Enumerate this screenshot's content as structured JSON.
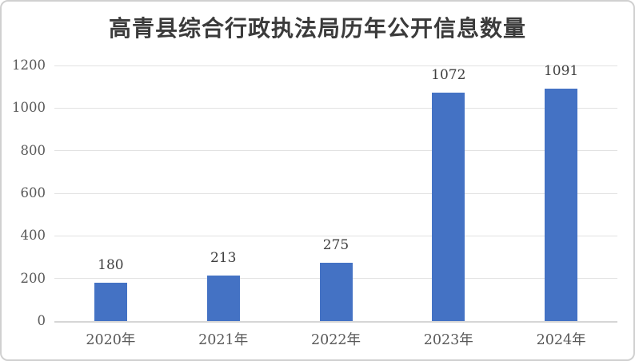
{
  "chart_data": {
    "type": "bar",
    "title": "高青县综合行政执法局历年公开信息数量",
    "categories": [
      "2020年",
      "2021年",
      "2022年",
      "2023年",
      "2024年"
    ],
    "values": [
      180,
      213,
      275,
      1072,
      1091
    ],
    "data_labels": [
      "180",
      "213",
      "275",
      "1072",
      "1091"
    ],
    "xlabel": "",
    "ylabel": "",
    "ylim": [
      0,
      1200
    ],
    "y_ticks": [
      0,
      200,
      400,
      600,
      800,
      1000,
      1200
    ],
    "grid": true,
    "legend_position": "none",
    "colors": {
      "bar": "#4472c4",
      "title_text": "#3b3b3b",
      "data_label_text": "#404040",
      "tick_text": "#595959",
      "gridline": "#e2e2e2",
      "axis_line": "#d6d6d6",
      "border": "#d0d0d0",
      "background": "#ffffff"
    }
  }
}
